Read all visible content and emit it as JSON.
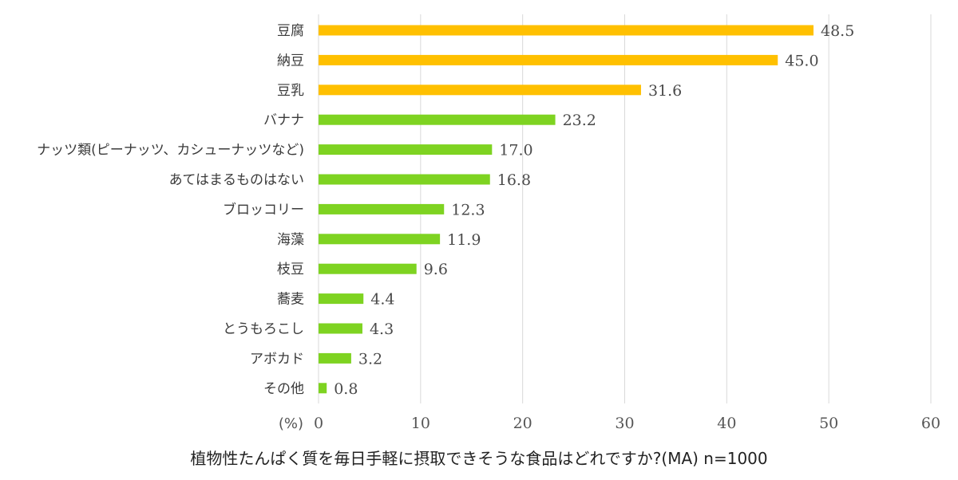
{
  "chart_data": {
    "type": "bar",
    "orientation": "horizontal",
    "categories": [
      "豆腐",
      "納豆",
      "豆乳",
      "バナナ",
      "ナッツ類(ピーナッツ、カシューナッツなど)",
      "あてはまるものはない",
      "ブロッコリー",
      "海藻",
      "枝豆",
      "蕎麦",
      "とうもろこし",
      "アボカド",
      "その他"
    ],
    "values": [
      48.5,
      45.0,
      31.6,
      23.2,
      17.0,
      16.8,
      12.3,
      11.9,
      9.6,
      4.4,
      4.3,
      3.2,
      0.8
    ],
    "value_labels": [
      "48.5",
      "45.0",
      "31.6",
      "23.2",
      "17.0",
      "16.8",
      "12.3",
      "11.9",
      "9.6",
      "4.4",
      "4.3",
      "3.2",
      "0.8"
    ],
    "highlight_count": 3,
    "xlim": [
      0,
      60
    ],
    "xticks": [
      "0",
      "10",
      "20",
      "30",
      "40",
      "50",
      "60"
    ],
    "unit_label": "(%)",
    "title": "植物性たんぱく質を毎日手軽に摂取できそうな食品はどれですか?(MA) n=1000",
    "grid": true
  },
  "colors": {
    "highlight": "#FFC000",
    "bar": "#7ED321",
    "grid": "#D9D9D9"
  }
}
